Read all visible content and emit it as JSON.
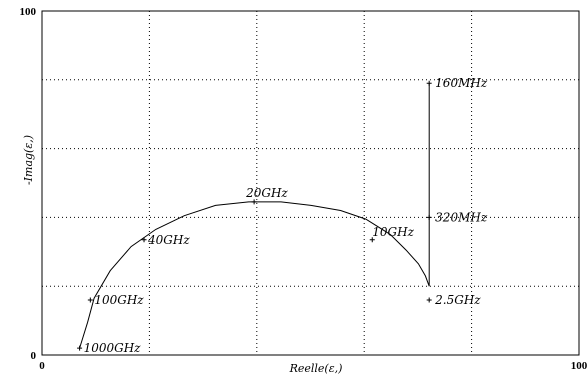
{
  "chart_data": {
    "type": "line",
    "xlabel": "Reelle(ε,)",
    "ylabel": "-Imag(ε,)",
    "x_ticks": [
      "0",
      "100"
    ],
    "y_ticks": [
      "0",
      "100"
    ],
    "xlim": [
      0,
      100
    ],
    "ylim": [
      0,
      100
    ],
    "grid": true,
    "series": [
      {
        "curve": [
          [
            7.0,
            2.0
          ],
          [
            8.5,
            9.5
          ],
          [
            9.7,
            16.5
          ],
          [
            12.7,
            24.5
          ],
          [
            16.6,
            31.5
          ],
          [
            21.2,
            36.5
          ],
          [
            26.5,
            40.5
          ],
          [
            32.3,
            43.5
          ],
          [
            38.5,
            44.5
          ],
          [
            44.5,
            44.5
          ],
          [
            50.1,
            43.5
          ],
          [
            55.6,
            42.0
          ],
          [
            60.3,
            39.5
          ],
          [
            64.9,
            35.0
          ],
          [
            67.8,
            30.5
          ],
          [
            70.1,
            26.5
          ],
          [
            71.4,
            23.0
          ],
          [
            72.1,
            20.0
          ],
          [
            72.1,
            20.5
          ],
          [
            72.1,
            40.0
          ],
          [
            72.1,
            60.0
          ],
          [
            72.1,
            79.0
          ]
        ],
        "points": [
          {
            "x": 7.0,
            "y": 2.0,
            "label": "1000GHz"
          },
          {
            "x": 9.0,
            "y": 16.0,
            "label": "100GHz"
          },
          {
            "x": 19.0,
            "y": 33.5,
            "label": "40GHz"
          },
          {
            "x": 39.5,
            "y": 44.5,
            "label": "20GHz"
          },
          {
            "x": 61.5,
            "y": 33.5,
            "label": "10GHz"
          },
          {
            "x": 72.1,
            "y": 16.0,
            "label": "2.5GHz"
          },
          {
            "x": 72.1,
            "y": 40.0,
            "label": "320MHz"
          },
          {
            "x": 72.1,
            "y": 79.0,
            "label": "160MHz"
          }
        ]
      }
    ]
  }
}
